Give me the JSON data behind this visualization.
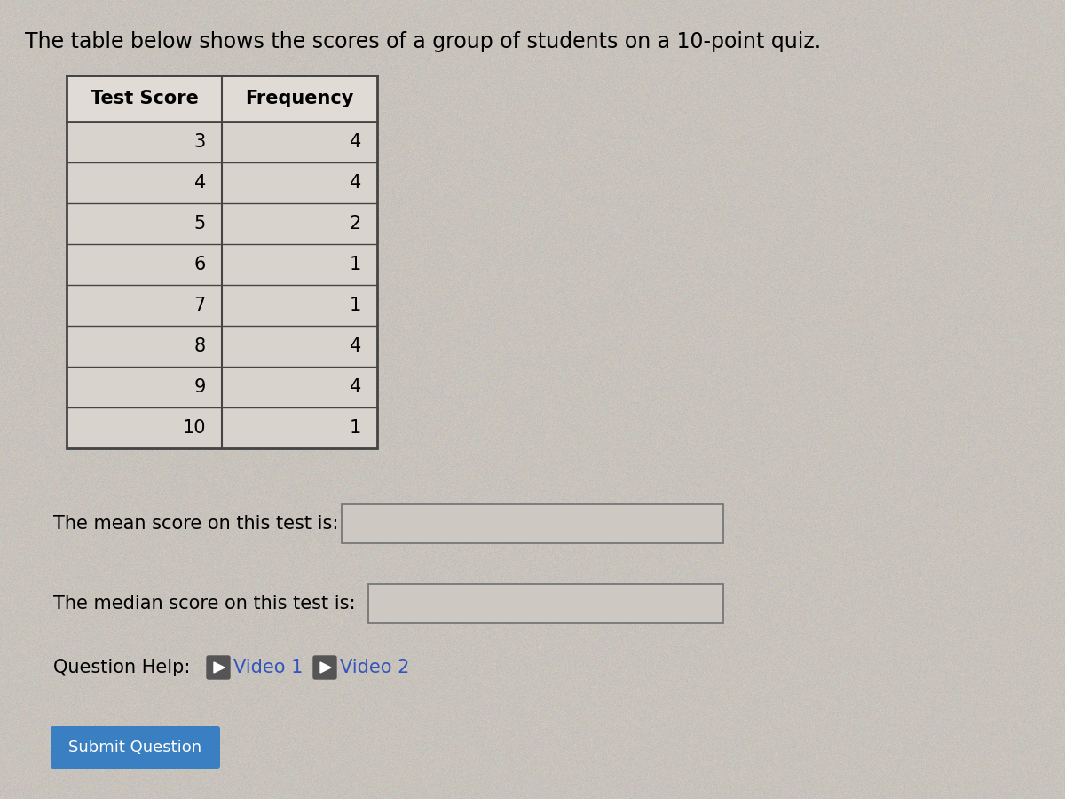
{
  "title": "The table below shows the scores of a group of students on a 10-point quiz.",
  "table_headers": [
    "Test Score",
    "Frequency"
  ],
  "table_data": [
    [
      3,
      4
    ],
    [
      4,
      4
    ],
    [
      5,
      2
    ],
    [
      6,
      1
    ],
    [
      7,
      1
    ],
    [
      8,
      4
    ],
    [
      9,
      4
    ],
    [
      10,
      1
    ]
  ],
  "mean_label": "The mean score on this test is:",
  "median_label": "The median score on this test is:",
  "question_help_text": "Question Help:",
  "video1_text": "Video 1",
  "video2_text": "Video 2",
  "submit_text": "Submit Question",
  "bg_color": "#c8c3bc",
  "table_bg": "#d8d3cc",
  "table_header_bg": "#e0dbd4",
  "table_border_color": "#444444",
  "input_box_color": "#cdc8c2",
  "input_box_border": "#777777",
  "submit_btn_color": "#3a7fc1",
  "submit_btn_text_color": "#ffffff",
  "video_icon_color": "#555555",
  "video_text_color": "#3355bb",
  "title_fontsize": 17,
  "body_fontsize": 15,
  "table_fontsize": 15,
  "header_fontsize": 15
}
